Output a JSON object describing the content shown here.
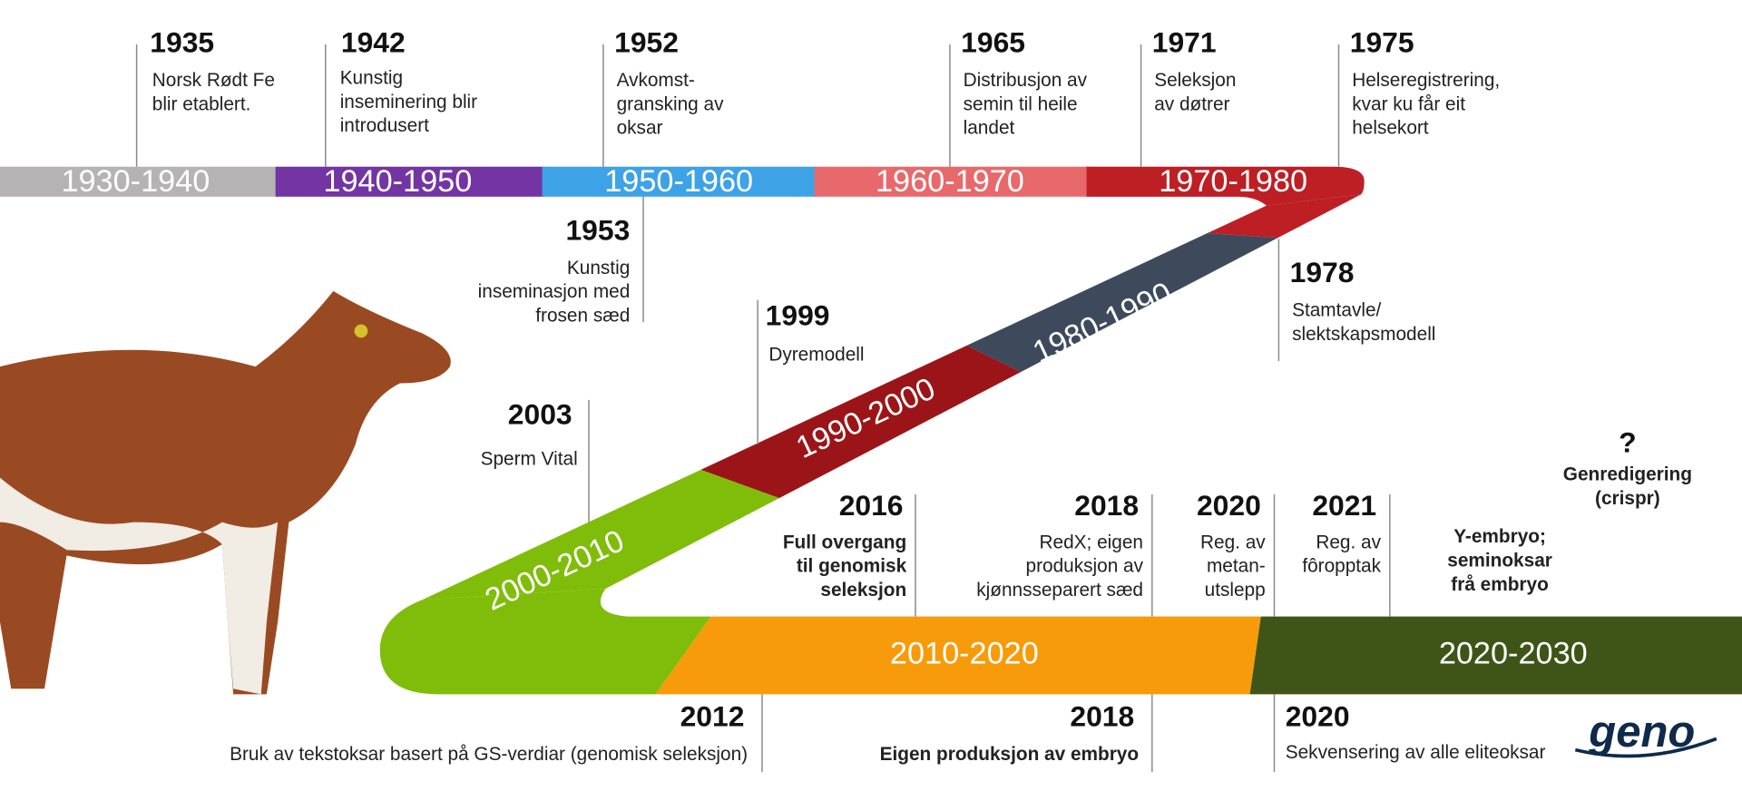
{
  "periods": [
    "1930-1940",
    "1940-1950",
    "1950-1960",
    "1960-1970",
    "1970-1980",
    "1980-1990",
    "1990-2000",
    "2000-2010",
    "2010-2020",
    "2020-2030"
  ],
  "events": [
    {
      "year": "1935",
      "lines": [
        "Norsk Rødt Fe",
        "blir etablert."
      ]
    },
    {
      "year": "1942",
      "lines": [
        "Kunstig",
        "inseminering blir",
        "introdusert"
      ]
    },
    {
      "year": "1952",
      "lines": [
        "Avkomst-",
        "gransking av",
        "oksar"
      ]
    },
    {
      "year": "1965",
      "lines": [
        "Distribusjon av",
        "semin til heile",
        "landet"
      ]
    },
    {
      "year": "1971",
      "lines": [
        "Seleksjon",
        "av døtrer"
      ]
    },
    {
      "year": "1975",
      "lines": [
        "Helseregistrering,",
        "kvar ku får eit",
        "helsekort"
      ]
    },
    {
      "year": "1953",
      "lines": [
        "Kunstig",
        "inseminasjon med",
        "frosen sæd"
      ]
    },
    {
      "year": "1978",
      "lines": [
        "Stamtavle/",
        "slektskapsmodell"
      ]
    },
    {
      "year": "1999",
      "lines": [
        "Dyremodell"
      ]
    },
    {
      "year": "2003",
      "lines": [
        "Sperm Vital"
      ]
    },
    {
      "year": "2016",
      "lines": [
        "Full overgang",
        "til genomisk",
        "seleksjon"
      ],
      "color": "#e5191e"
    },
    {
      "year": "2018",
      "lines": [
        "RedX; eigen",
        "produksjon av",
        "kjønnsseparert sæd"
      ]
    },
    {
      "year": "2020",
      "lines": [
        "Reg. av",
        "metan-",
        "utslepp"
      ]
    },
    {
      "year": "2021",
      "lines": [
        "Reg. av",
        "fôropptak"
      ]
    },
    {
      "lines": [
        "Y-embryo;",
        "seminoksar",
        "frå embryo"
      ],
      "color": "#e5191e"
    },
    {
      "year": "?",
      "lines": [
        "Genredigering",
        "(crispr)"
      ],
      "color": "#e5191e"
    },
    {
      "year": "2012",
      "lines": [
        "Bruk av tekstoksar basert på GS-verdiar (genomisk seleksjon)"
      ]
    },
    {
      "year": "2018",
      "lines": [
        "Eigen produksjon av embryo"
      ],
      "color": "#e5191e"
    },
    {
      "year": "2020",
      "lines": [
        "Sekvensering av alle eliteoksar"
      ]
    }
  ],
  "logo": "geno"
}
